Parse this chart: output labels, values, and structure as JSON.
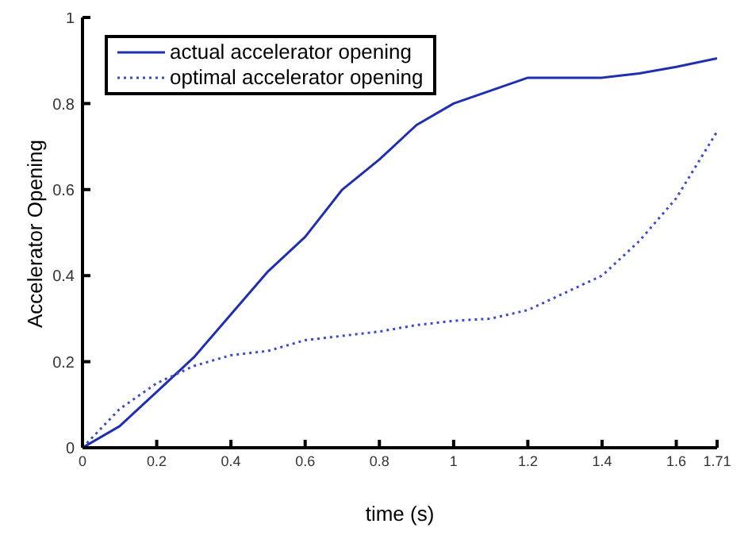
{
  "chart_data": {
    "type": "line",
    "xlabel": "time (s)",
    "ylabel": "Accelerator Opening",
    "x": [
      0,
      0.1,
      0.2,
      0.3,
      0.4,
      0.5,
      0.6,
      0.7,
      0.8,
      0.9,
      1.0,
      1.1,
      1.2,
      1.3,
      1.4,
      1.5,
      1.6,
      1.71
    ],
    "series": [
      {
        "name": "actual accelerator opening",
        "color": "#1f2fb0",
        "line_style": "solid",
        "values": [
          0,
          0.05,
          0.13,
          0.21,
          0.31,
          0.41,
          0.49,
          0.6,
          0.67,
          0.75,
          0.8,
          0.83,
          0.86,
          0.86,
          0.86,
          0.87,
          0.885,
          0.905
        ]
      },
      {
        "name": "optimal accelerator opening",
        "color": "#3a4ac8",
        "line_style": "dotted",
        "values": [
          0,
          0.09,
          0.15,
          0.19,
          0.215,
          0.225,
          0.25,
          0.26,
          0.27,
          0.285,
          0.295,
          0.3,
          0.32,
          0.36,
          0.4,
          0.48,
          0.58,
          0.735
        ]
      }
    ],
    "xlim": [
      0,
      1.71
    ],
    "xticks": [
      0,
      0.2,
      0.4,
      0.6,
      0.8,
      1,
      1.2,
      1.4,
      1.6,
      1.71
    ],
    "ylim": [
      0,
      1
    ],
    "yticks": [
      0,
      0.2,
      0.4,
      0.6,
      0.8,
      1
    ],
    "grid": false,
    "legend": "top left"
  }
}
